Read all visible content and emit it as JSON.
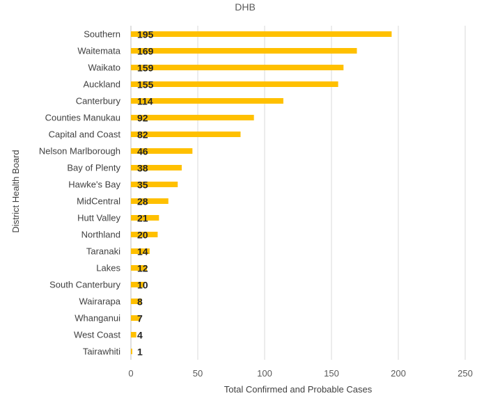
{
  "chart_data": {
    "type": "bar",
    "orientation": "horizontal",
    "title": "DHB",
    "xlabel": "Total Confirmed and Probable Cases",
    "ylabel": "District Health Board",
    "xlim": [
      0,
      250
    ],
    "xticks": [
      0,
      50,
      100,
      150,
      200,
      250
    ],
    "grid": true,
    "bar_color": "#FFC000",
    "categories": [
      "Southern",
      "Waitemata",
      "Waikato",
      "Auckland",
      "Canterbury",
      "Counties Manukau",
      "Capital and Coast",
      "Nelson Marlborough",
      "Bay of Plenty",
      "Hawke's Bay",
      "MidCentral",
      "Hutt Valley",
      "Northland",
      "Taranaki",
      "Lakes",
      "South Canterbury",
      "Wairarapa",
      "Whanganui",
      "West Coast",
      "Tairawhiti"
    ],
    "values": [
      195,
      169,
      159,
      155,
      114,
      92,
      82,
      46,
      38,
      35,
      28,
      21,
      20,
      14,
      12,
      10,
      8,
      7,
      4,
      1
    ]
  }
}
